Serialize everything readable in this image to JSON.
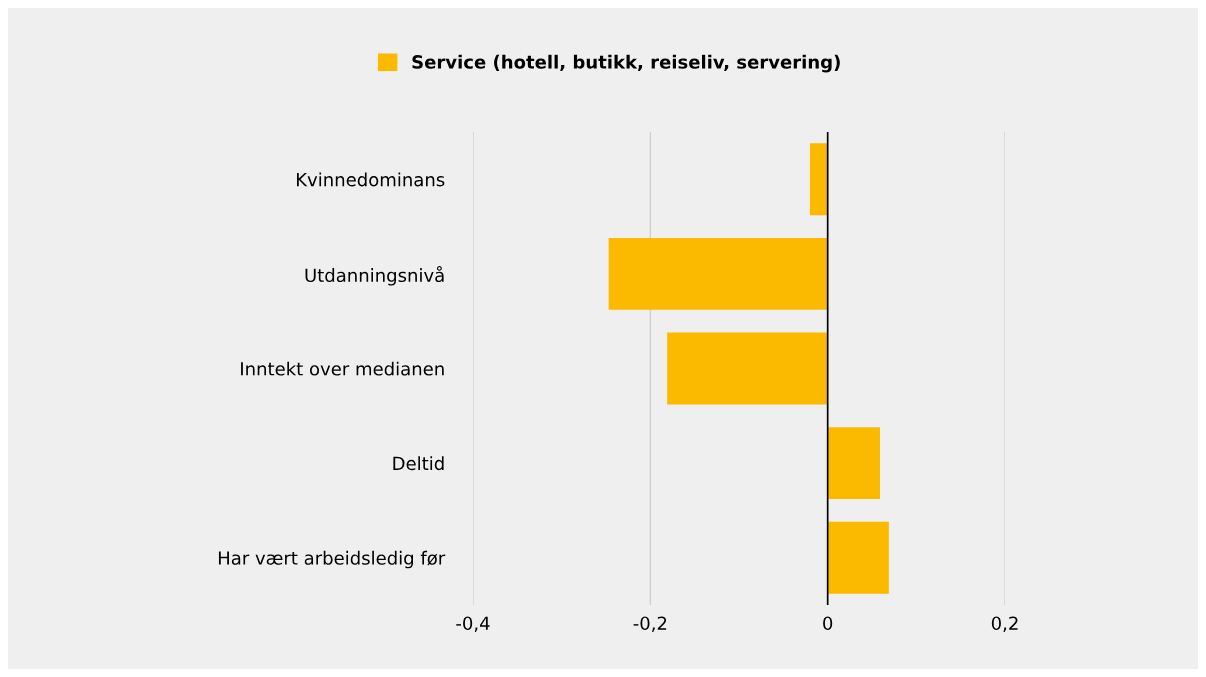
{
  "chart_data": {
    "type": "bar",
    "orientation": "horizontal",
    "categories": [
      "Kvinnedominans",
      "Utdanningsnivå",
      "Inntekt over medianen",
      "Deltid",
      "Har vært arbeidsledig før"
    ],
    "series": [
      {
        "name": "Service (hotell, butikk, reiseliv, servering)",
        "color": "#fbb900",
        "values": [
          -0.02,
          -0.247,
          -0.181,
          0.059,
          0.069
        ]
      }
    ],
    "xlim": [
      -0.4,
      0.2
    ],
    "xticks": [
      {
        "value": -0.4,
        "label": "-0,4"
      },
      {
        "value": -0.2,
        "label": "-0,2"
      },
      {
        "value": 0,
        "label": "0"
      },
      {
        "value": 0.2,
        "label": "0,2"
      }
    ],
    "ref_lines": [
      {
        "axis": "x",
        "value": 0,
        "color": "#000000"
      }
    ],
    "grid": "x",
    "legend": "top"
  }
}
